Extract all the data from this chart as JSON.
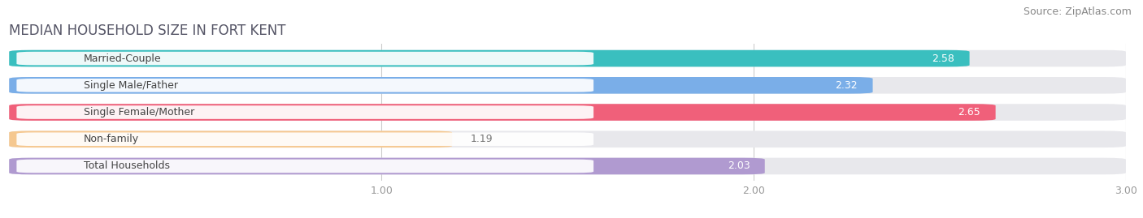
{
  "title": "MEDIAN HOUSEHOLD SIZE IN FORT KENT",
  "source": "Source: ZipAtlas.com",
  "categories": [
    "Married-Couple",
    "Single Male/Father",
    "Single Female/Mother",
    "Non-family",
    "Total Households"
  ],
  "values": [
    2.58,
    2.32,
    2.65,
    1.19,
    2.03
  ],
  "bar_colors": [
    "#3abfbf",
    "#7aaee8",
    "#f0607a",
    "#f5c890",
    "#b09ad0"
  ],
  "bar_bg_color": "#e8e8ec",
  "label_bg_color": "#ffffff",
  "xlim_data": [
    0,
    3.0
  ],
  "xticks": [
    1.0,
    2.0,
    3.0
  ],
  "title_fontsize": 12,
  "source_fontsize": 9,
  "label_fontsize": 9,
  "value_fontsize": 9,
  "background_color": "#ffffff",
  "bar_height": 0.62,
  "value_color_inside": "#ffffff",
  "value_color_outside": "#777777",
  "label_text_color": "#444444",
  "grid_color": "#cccccc",
  "tick_color": "#999999"
}
